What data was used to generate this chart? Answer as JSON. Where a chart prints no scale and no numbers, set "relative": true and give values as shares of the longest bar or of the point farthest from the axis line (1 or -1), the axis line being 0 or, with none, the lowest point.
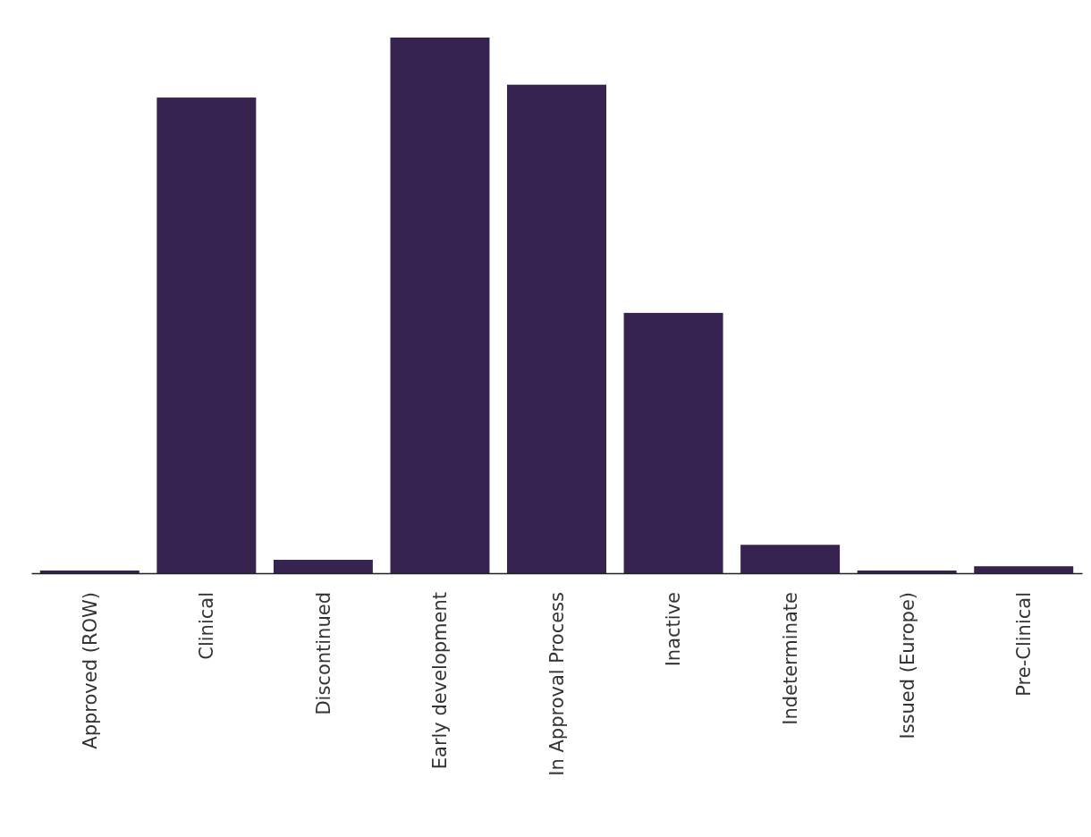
{
  "chart_data": {
    "type": "bar",
    "relative": true,
    "categories": [
      "Approved (ROW)",
      "Clinical",
      "Discontinued",
      "Early development",
      "In Approval Process",
      "Inactive",
      "Indeterminate",
      "Issued (Europe)",
      "Pre-Clinical"
    ],
    "values": [
      0.005,
      0.888,
      0.025,
      1,
      0.912,
      0.486,
      0.053,
      0.005,
      0.013
    ],
    "color": "#37234f"
  }
}
